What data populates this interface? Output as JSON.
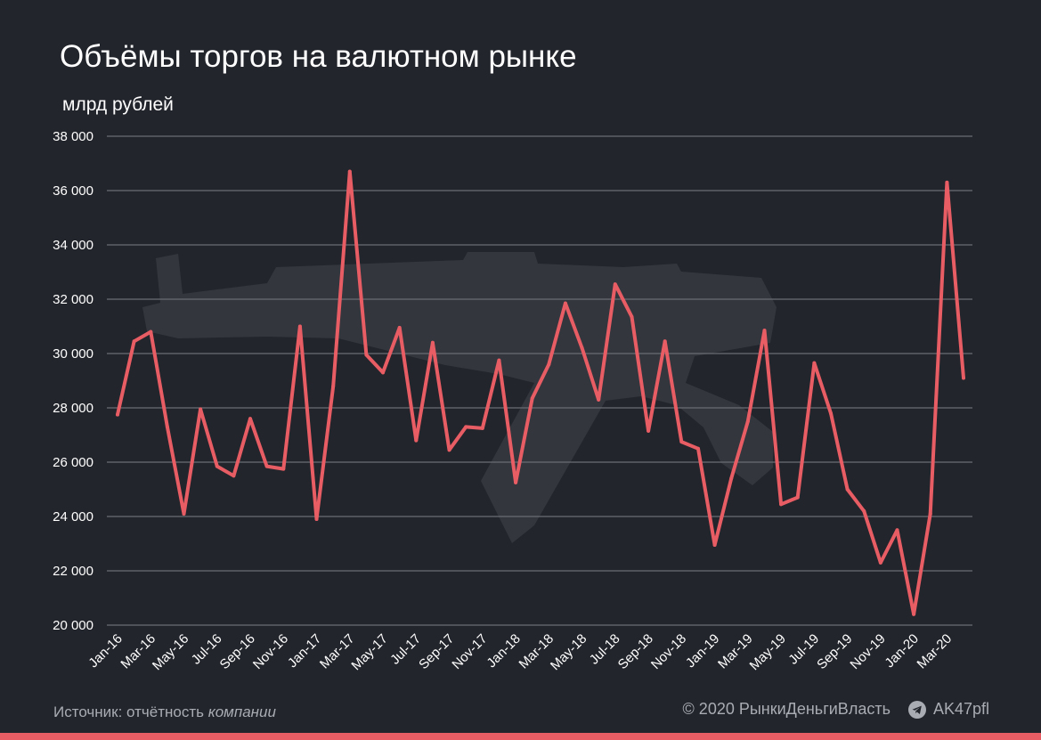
{
  "header": {
    "title": "Объёмы торгов на валютном рынке",
    "unit": "млрд рублей"
  },
  "footer": {
    "source_prefix": "Источник: отчётность ",
    "source_italic": "компании",
    "copyright": "© 2020  РынкиДеньгиВласть",
    "channel": "AK47pfl",
    "channel_icon": "telegram-icon"
  },
  "colors": {
    "background": "#23252c",
    "line": "#e85d64",
    "grid": "#6b6e76",
    "watermark": "#34363e",
    "text": "#ffffff",
    "muted": "#a9acb3"
  },
  "chart_data": {
    "type": "line",
    "title": "Объёмы торгов на валютном рынке",
    "ylabel": "млрд рублей",
    "xlabel": "",
    "ylim": [
      20000,
      38000
    ],
    "yticks": [
      20000,
      22000,
      24000,
      26000,
      28000,
      30000,
      32000,
      34000,
      36000,
      38000
    ],
    "ytick_labels": [
      "20 000",
      "22 000",
      "24 000",
      "26 000",
      "28 000",
      "30 000",
      "32 000",
      "34 000",
      "36 000",
      "38 000"
    ],
    "grid": true,
    "x": [
      "Jan-16",
      "Feb-16",
      "Mar-16",
      "Apr-16",
      "May-16",
      "Jun-16",
      "Jul-16",
      "Aug-16",
      "Sep-16",
      "Oct-16",
      "Nov-16",
      "Dec-16",
      "Jan-17",
      "Feb-17",
      "Mar-17",
      "Apr-17",
      "May-17",
      "Jun-17",
      "Jul-17",
      "Aug-17",
      "Sep-17",
      "Oct-17",
      "Nov-17",
      "Dec-17",
      "Jan-18",
      "Feb-18",
      "Mar-18",
      "Apr-18",
      "May-18",
      "Jun-18",
      "Jul-18",
      "Aug-18",
      "Sep-18",
      "Oct-18",
      "Nov-18",
      "Dec-18",
      "Jan-19",
      "Feb-19",
      "Mar-19",
      "Apr-19",
      "May-19",
      "Jun-19",
      "Jul-19",
      "Aug-19",
      "Sep-19",
      "Oct-19",
      "Nov-19",
      "Dec-19",
      "Jan-20",
      "Feb-20",
      "Mar-20",
      "Apr-20"
    ],
    "xtick_labels": [
      "Jan-16",
      "Mar-16",
      "May-16",
      "Jul-16",
      "Sep-16",
      "Nov-16",
      "Jan-17",
      "Mar-17",
      "May-17",
      "Jul-17",
      "Sep-17",
      "Nov-17",
      "Jan-18",
      "Mar-18",
      "May-18",
      "Jul-18",
      "Sep-18",
      "Nov-18",
      "Jan-19",
      "Mar-19",
      "May-19",
      "Jul-19",
      "Sep-19",
      "Nov-19",
      "Jan-20",
      "Mar-20"
    ],
    "series": [
      {
        "values": [
          27750,
          30450,
          30800,
          27300,
          24100,
          27950,
          25850,
          25500,
          27600,
          25850,
          25750,
          31000,
          23900,
          28800,
          36700,
          29950,
          29300,
          30950,
          26800,
          30400,
          26450,
          27300,
          27250,
          29750,
          25250,
          28350,
          29600,
          31850,
          30200,
          28300,
          32550,
          31350,
          27150,
          30450,
          26750,
          26500,
          22950,
          25400,
          27500,
          30850,
          24450,
          24700,
          29650,
          27800,
          25000,
          24200,
          22300,
          23500,
          20400,
          24100,
          36300,
          29100
        ]
      }
    ]
  }
}
